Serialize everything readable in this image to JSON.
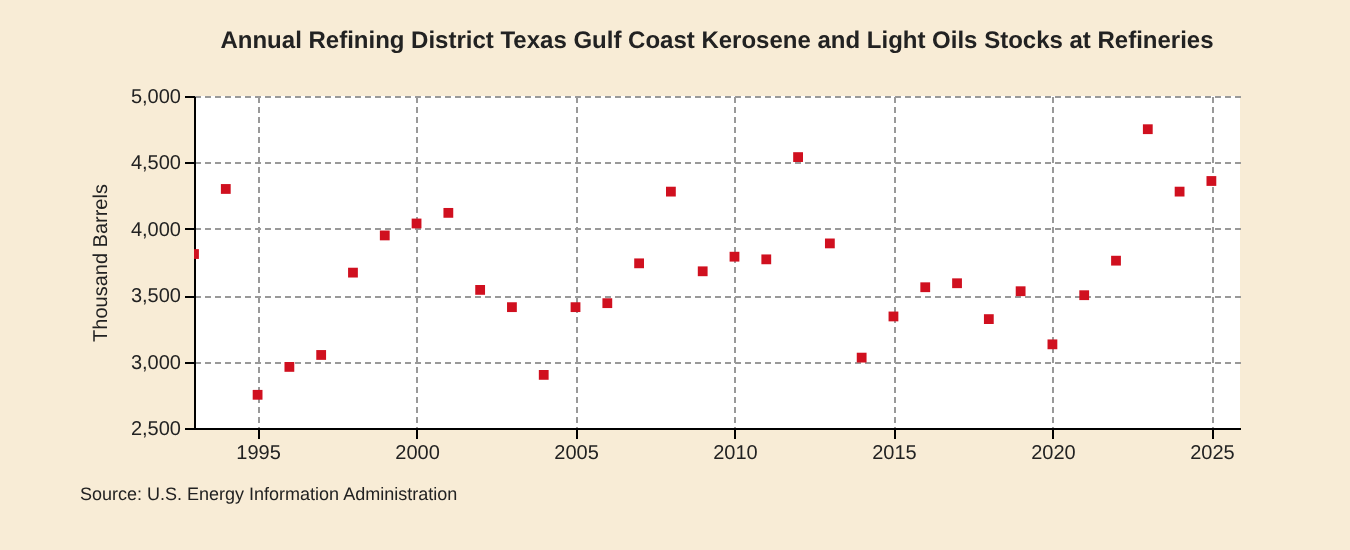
{
  "chart_data": {
    "type": "scatter",
    "title": "Annual Refining District Texas Gulf Coast Kerosene and Light Oils Stocks at Refineries",
    "ylabel": "Thousand Barrels",
    "annotations": [
      "Source: U.S. Energy Information Administration"
    ],
    "x": [
      1993,
      1994,
      1995,
      1996,
      1997,
      1998,
      1999,
      2000,
      2001,
      2002,
      2003,
      2004,
      2005,
      2006,
      2007,
      2008,
      2009,
      2010,
      2011,
      2012,
      2013,
      2014,
      2015,
      2016,
      2017,
      2018,
      2019,
      2020,
      2021,
      2022,
      2023,
      2024,
      2025
    ],
    "series": [
      {
        "color": "#d0101f",
        "values": [
          3810,
          4300,
          2750,
          2960,
          3050,
          3670,
          3950,
          4040,
          4120,
          3540,
          3410,
          2900,
          3410,
          3440,
          3740,
          4280,
          3680,
          3790,
          3770,
          4540,
          3890,
          3030,
          3340,
          3560,
          3590,
          3320,
          3530,
          3130,
          3500,
          3760,
          4750,
          4280,
          4360
        ]
      }
    ],
    "xlim": [
      1993,
      2025.9
    ],
    "xticks": [
      {
        "value": 1995,
        "label": "1995"
      },
      {
        "value": 2000,
        "label": "2000"
      },
      {
        "value": 2005,
        "label": "2005"
      },
      {
        "value": 2010,
        "label": "2010"
      },
      {
        "value": 2015,
        "label": "2015"
      },
      {
        "value": 2020,
        "label": "2020"
      },
      {
        "value": 2025,
        "label": "2025"
      }
    ],
    "ylim": [
      2500,
      5000
    ],
    "yticks": [
      {
        "value": 2500,
        "label": "2,500"
      },
      {
        "value": 3000,
        "label": "3,000"
      },
      {
        "value": 3500,
        "label": "3,500"
      },
      {
        "value": 4000,
        "label": "4,000"
      },
      {
        "value": 4500,
        "label": "4,500"
      },
      {
        "value": 5000,
        "label": "5,000"
      }
    ],
    "grid": true,
    "marker": "square",
    "legend": false
  }
}
